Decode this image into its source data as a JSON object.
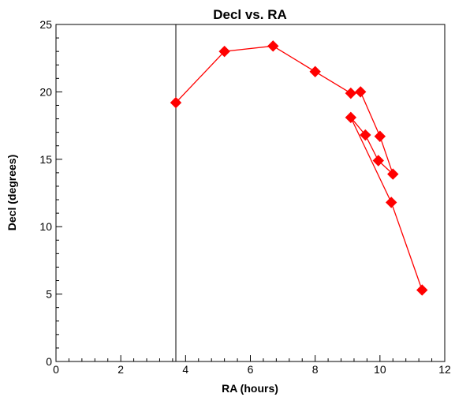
{
  "chart_data": {
    "type": "line",
    "title": "Decl vs. RA",
    "xlabel": "RA (hours)",
    "ylabel": "Decl (degrees)",
    "xlim": [
      0,
      12
    ],
    "ylim": [
      0,
      25
    ],
    "xticks": [
      0,
      2,
      4,
      6,
      8,
      10,
      12
    ],
    "yticks": [
      0,
      5,
      10,
      15,
      20,
      25
    ],
    "grid": false,
    "legend": "none",
    "reference_line": {
      "orientation": "vertical",
      "x": 3.7
    },
    "series": [
      {
        "color": "#ff0000",
        "marker": "diamond",
        "points": [
          {
            "x": 3.7,
            "y": 19.2
          },
          {
            "x": 5.2,
            "y": 23.0
          },
          {
            "x": 6.7,
            "y": 23.4
          },
          {
            "x": 8.0,
            "y": 21.5
          },
          {
            "x": 9.1,
            "y": 19.9
          },
          {
            "x": 9.4,
            "y": 20.0
          },
          {
            "x": 10.0,
            "y": 16.7
          },
          {
            "x": 10.4,
            "y": 13.9
          },
          {
            "x": 9.95,
            "y": 14.9
          },
          {
            "x": 9.55,
            "y": 16.8
          },
          {
            "x": 9.1,
            "y": 18.1
          },
          {
            "x": 10.35,
            "y": 11.8
          },
          {
            "x": 11.3,
            "y": 5.3
          }
        ]
      }
    ]
  }
}
